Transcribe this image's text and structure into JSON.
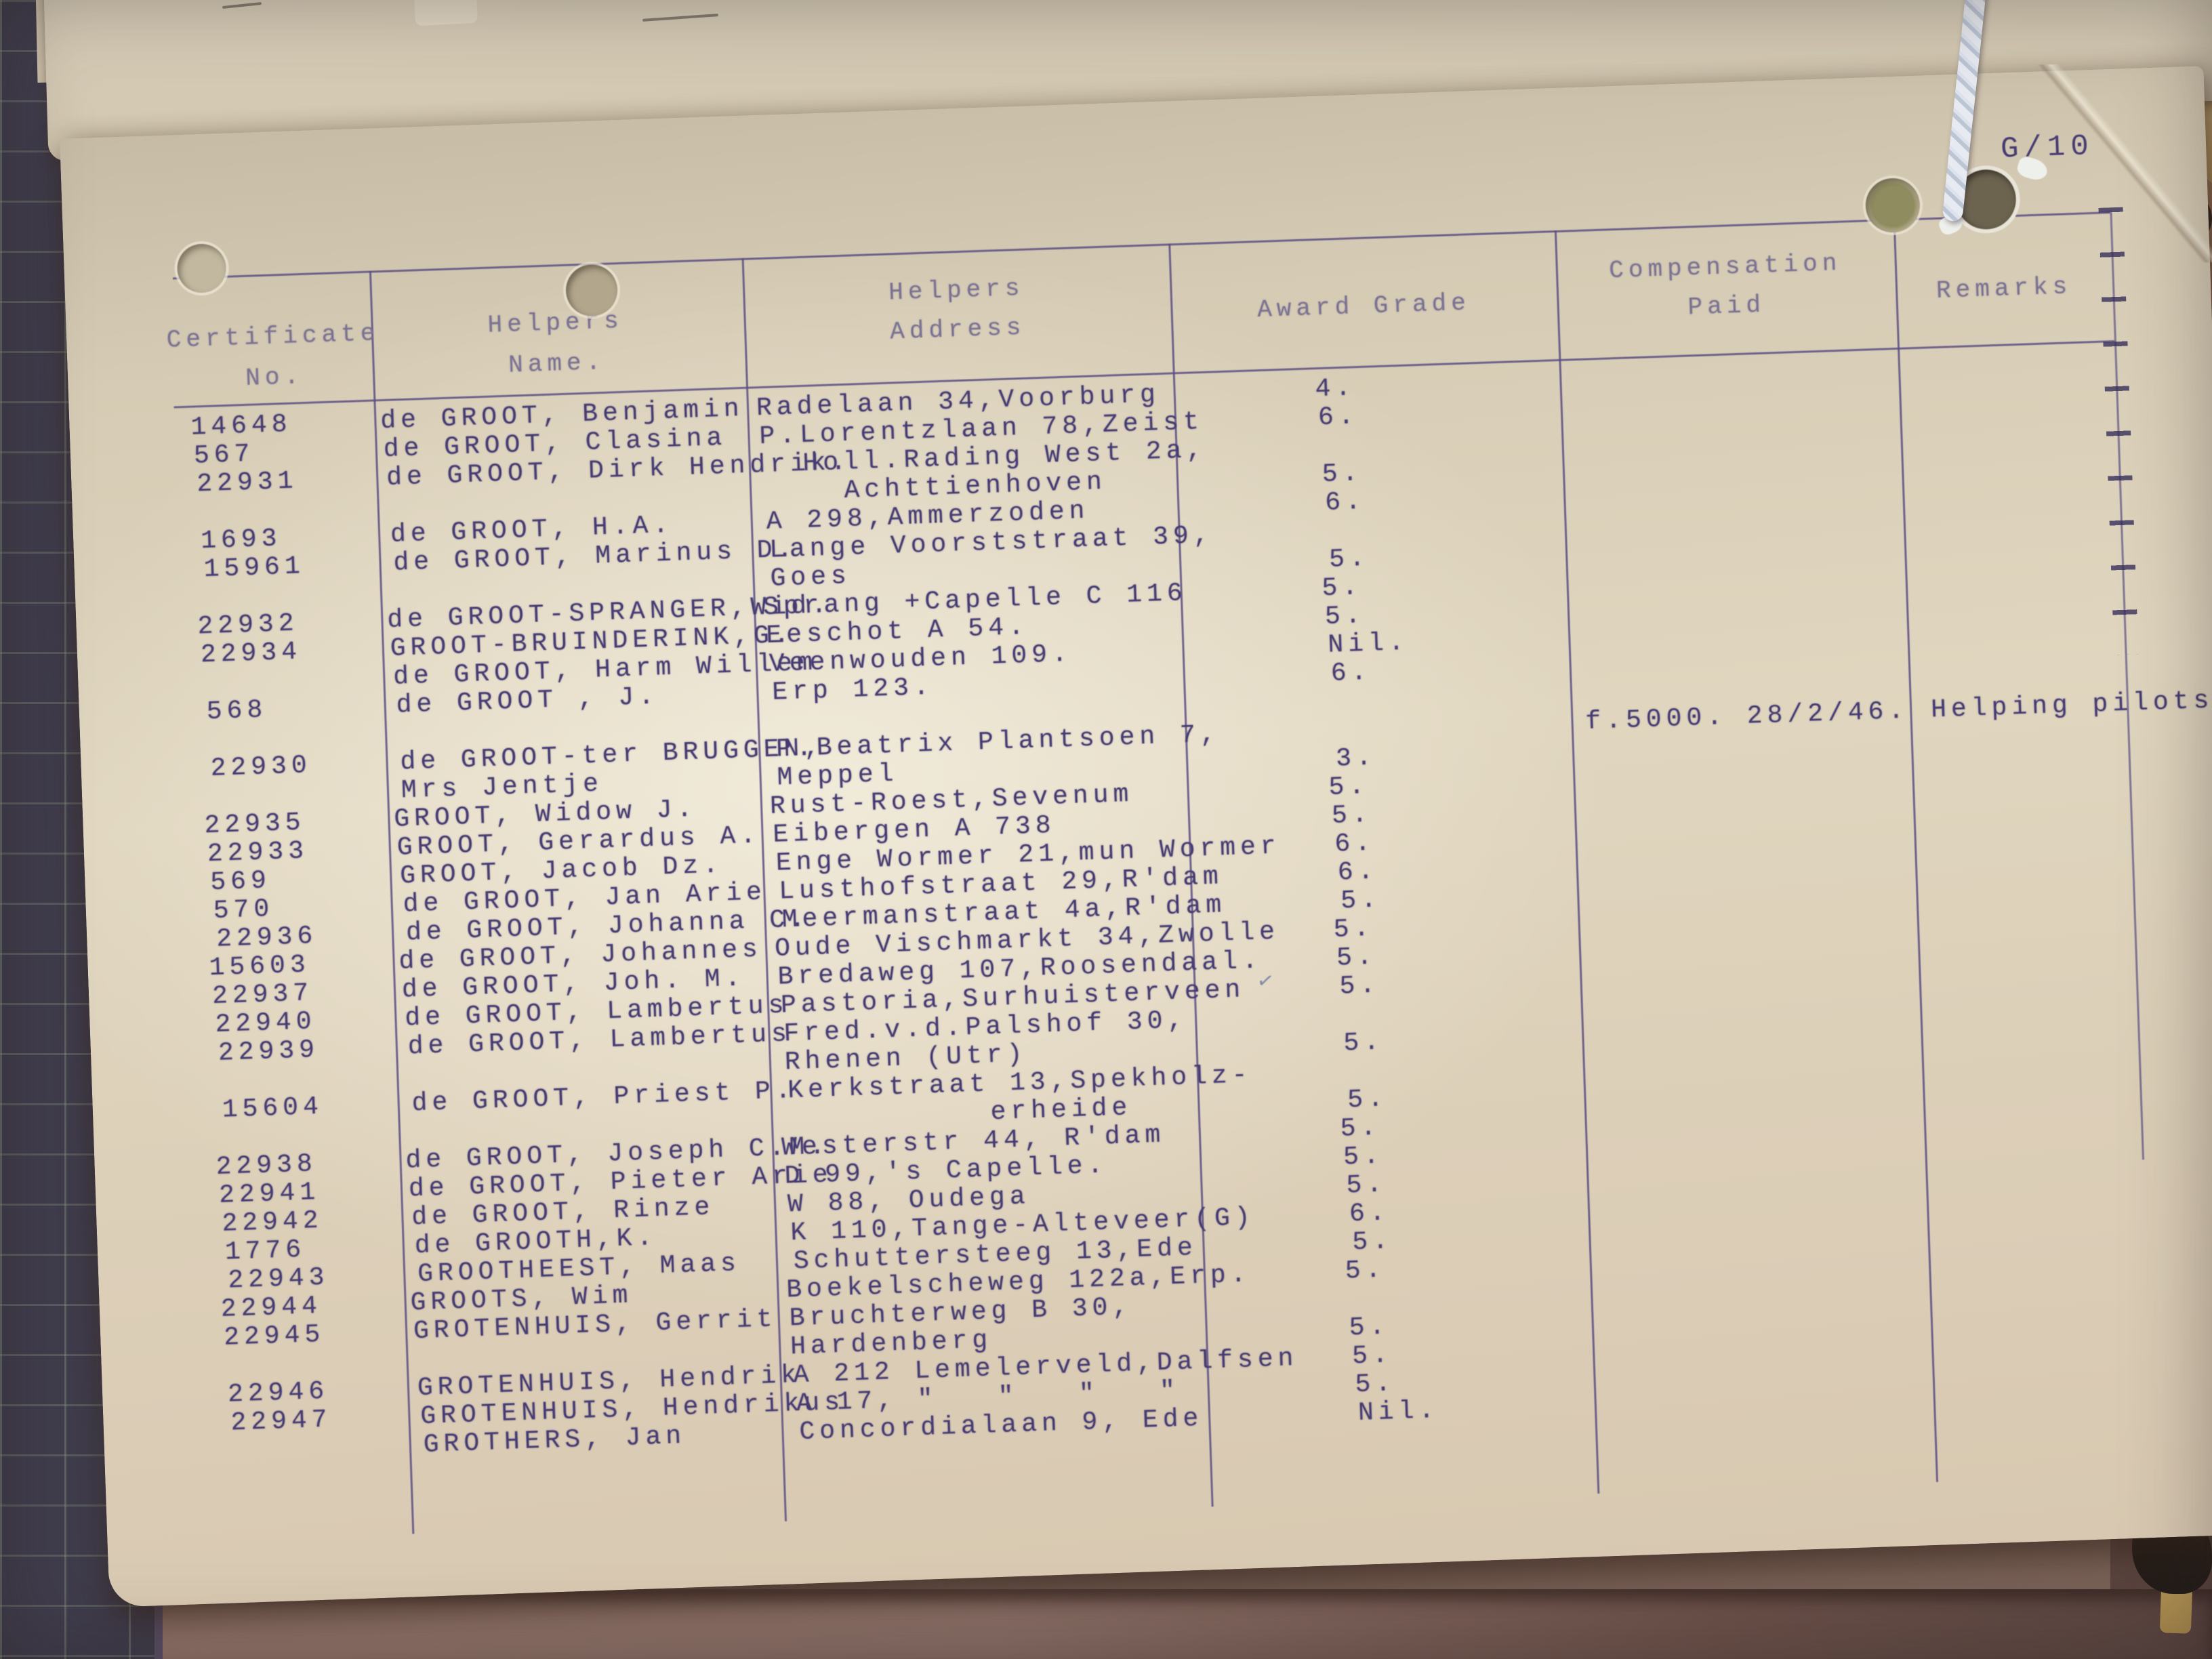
{
  "photo": {
    "page_label": "G/10"
  },
  "colors": {
    "ink": "#453b72",
    "ink_faded": "#7a7292",
    "paper": "#ddd3bc",
    "mat": "#403d4d",
    "mat_grid": "#90a287",
    "surface": "#8a6d62",
    "string": "#e7ebf1",
    "stack_edge": "#bfa05e"
  },
  "table": {
    "headers": {
      "certificate": [
        "Certificate",
        "No."
      ],
      "helpers_name": [
        "Helpers",
        "Name."
      ],
      "helpers_address": [
        "Helpers",
        "Address"
      ],
      "award_grade": "Award Grade",
      "compensation": [
        "Compensation",
        "Paid"
      ],
      "remarks": "Remarks"
    },
    "rows": [
      {
        "no": "14648",
        "name": [
          "de GROOT, Benjamin"
        ],
        "address": [
          "Radelaan 34,Voorburg"
        ],
        "grade": "4."
      },
      {
        "no": "567",
        "name": [
          "de GROOT, Clasina"
        ],
        "address": [
          "P.Lorentzlaan 78,Zeist"
        ],
        "grade": "6."
      },
      {
        "no": "22931",
        "name": [
          "de GROOT, Dirk Hendrik."
        ],
        "address": [
          "  Holl.Rading West 2a,",
          "    Achttienhoven"
        ],
        "grade": "5."
      },
      {
        "no": "1693",
        "name": [
          "de GROOT, H.A."
        ],
        "address": [
          "A 298,Ammerzoden"
        ],
        "grade": "6."
      },
      {
        "no": "15961",
        "name": [
          "de GROOT, Marinus D."
        ],
        "address": [
          "Lange Voorststraat 39,",
          "Goes"
        ],
        "grade": "5."
      },
      {
        "no": "22932",
        "name": [
          "de GROOT-SPRANGER,Wid."
        ],
        "address": [
          "Sprang +Capelle C 116"
        ],
        "grade": "5."
      },
      {
        "no": "22934",
        "name": [
          "GROOT-BRUINDERINK,G."
        ],
        "address": [
          "Eeschot A 54."
        ],
        "grade": "5."
      },
      {
        "no": "",
        "name": [
          "de GROOT, Harm Willem"
        ],
        "address": [
          "Veenwouden 109."
        ],
        "grade": "Nil."
      },
      {
        "no": "568",
        "name": [
          "de GROOT , J."
        ],
        "address": [
          "Erp 123."
        ],
        "grade": "6."
      },
      {
        "no": "22930",
        "name": [
          "de GROOT-ter BRUGGEN,",
          "Mrs Jentje"
        ],
        "address": [
          "P.Beatrix Plantsoen 7,",
          "Meppel"
        ],
        "grade": "3.",
        "compensation": "f.5000. 28/2/46.",
        "remarks": "Helping pilots.",
        "gap_before": true
      },
      {
        "no": "22935",
        "name": [
          "GROOT, Widow J."
        ],
        "address": [
          "Rust-Roest,Sevenum"
        ],
        "grade": "5."
      },
      {
        "no": "22933",
        "name": [
          "GROOT, Gerardus A."
        ],
        "address": [
          "Eibergen A 738"
        ],
        "grade": "5."
      },
      {
        "no": "569",
        "name": [
          "GROOT, Jacob Dz."
        ],
        "address": [
          "Enge Wormer 21,mun Wormer"
        ],
        "grade": "6."
      },
      {
        "no": "570",
        "name": [
          "de GROOT, Jan Arie"
        ],
        "address": [
          "Lusthofstraat 29,R'dam"
        ],
        "grade": "6."
      },
      {
        "no": "22936",
        "name": [
          "de GROOT, Johanna C."
        ],
        "address": [
          "Meermanstraat 4a,R'dam"
        ],
        "grade": "5."
      },
      {
        "no": "15603",
        "name": [
          "de GROOT, Johannes"
        ],
        "address": [
          "Oude Vischmarkt 34,Zwolle"
        ],
        "grade": "5."
      },
      {
        "no": "22937",
        "name": [
          "de GROOT, Joh. M."
        ],
        "address": [
          "Bredaweg 107,Roosendaal."
        ],
        "grade": "5."
      },
      {
        "no": "22940",
        "name": [
          "de GROOT, Lambertus"
        ],
        "address": [
          "Pastoria,Surhuisterveen"
        ],
        "grade": "5.",
        "annotation": "✓"
      },
      {
        "no": "22939",
        "name": [
          "de GROOT, Lambertus"
        ],
        "address": [
          "Fred.v.d.Palshof 30,",
          "Rhenen (Utr)"
        ],
        "grade": "5."
      },
      {
        "no": "15604",
        "name": [
          "de GROOT, Priest P."
        ],
        "address": [
          "Kerkstraat 13,Spekholz-",
          "          erheide"
        ],
        "grade": "5."
      },
      {
        "no": "22938",
        "name": [
          "de GROOT, Joseph C.M."
        ],
        "address": [
          "Westerstr 44, R'dam"
        ],
        "grade": "5."
      },
      {
        "no": "22941",
        "name": [
          "de GROOT, Pieter Arie"
        ],
        "address": [
          "D 99,'s Capelle."
        ],
        "grade": "5."
      },
      {
        "no": "22942",
        "name": [
          "de GROOT, Rinze"
        ],
        "address": [
          "W 88, Oudega"
        ],
        "grade": "5."
      },
      {
        "no": "1776",
        "name": [
          "de GROOTH,K."
        ],
        "address": [
          "K 110,Tange-Alteveer(G)"
        ],
        "grade": "6."
      },
      {
        "no": "22943",
        "name": [
          "GROOTHEEST, Maas"
        ],
        "address": [
          "Schuttersteeg 13,Ede"
        ],
        "grade": "5."
      },
      {
        "no": "22944",
        "name": [
          "GROOTS, Wim"
        ],
        "address": [
          "Boekelscheweg 122a,Erp."
        ],
        "grade": "5."
      },
      {
        "no": "22945",
        "name": [
          "GROTENHUIS, Gerrit"
        ],
        "address": [
          "Bruchterweg B 30,",
          "Hardenberg"
        ],
        "grade": "5."
      },
      {
        "no": "22946",
        "name": [
          "GROTENHUIS, Hendrik"
        ],
        "address": [
          "A 212 Lemelerveld,Dalfsen"
        ],
        "grade": "5."
      },
      {
        "no": "22947",
        "name": [
          "GROTENHUIS, Hendrikus"
        ],
        "address": [
          "A 17, \"   \"   \"   \""
        ],
        "grade": "5."
      },
      {
        "no": "",
        "name": [
          "GROTHERS, Jan"
        ],
        "address": [
          "Concordialaan 9, Ede"
        ],
        "grade": "Nil."
      }
    ]
  }
}
